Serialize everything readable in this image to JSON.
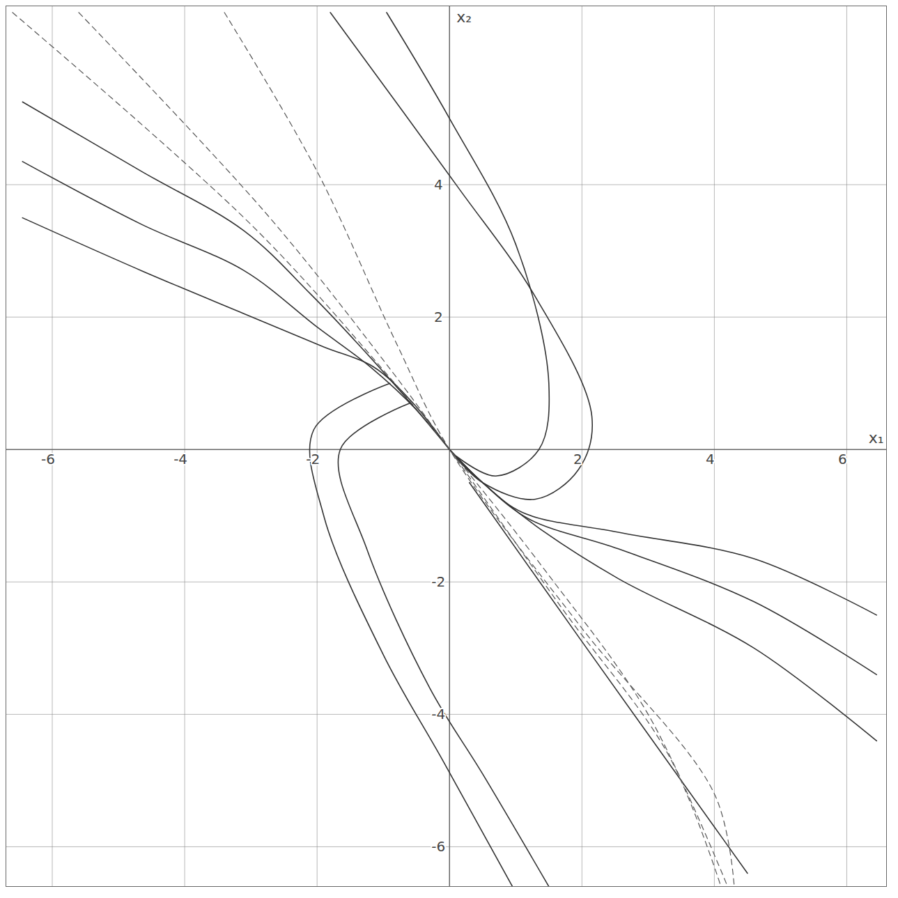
{
  "chart_data": {
    "type": "line",
    "x_label": "x₁",
    "y_label": "x₂",
    "xlim": [
      -6.7,
      6.6
    ],
    "ylim": [
      -6.6,
      6.7
    ],
    "xticks": [
      -6,
      -4,
      -2,
      2,
      4,
      6
    ],
    "yticks": [
      -6,
      -4,
      -2,
      2,
      4
    ],
    "grid": true,
    "series": [
      {
        "color": "#333333",
        "line_style": "solid",
        "x": [
          -6.45,
          -4.65,
          -3.1,
          -1.9,
          -1.15,
          -0.55,
          0
        ],
        "values": [
          3.5,
          2.7,
          2.05,
          1.55,
          1.25,
          0.7,
          0
        ]
      },
      {
        "color": "#333333",
        "line_style": "solid",
        "x": [
          -6.45,
          -4.65,
          -3.1,
          -2.0,
          -1.2,
          -0.5,
          0
        ],
        "values": [
          4.35,
          3.4,
          2.7,
          1.85,
          1.25,
          0.6,
          0
        ]
      },
      {
        "color": "#333333",
        "line_style": "solid",
        "x": [
          -6.45,
          -4.65,
          -3.1,
          -2.1,
          -1.25,
          -0.5,
          0
        ],
        "values": [
          5.25,
          4.2,
          3.3,
          2.35,
          1.45,
          0.6,
          0
        ]
      },
      {
        "color": "#333333",
        "line_style": "solid",
        "x": [
          6.45,
          4.6,
          2.55,
          1.1,
          0.5,
          0
        ],
        "values": [
          -2.5,
          -1.65,
          -1.25,
          -0.95,
          -0.5,
          0
        ]
      },
      {
        "color": "#333333",
        "line_style": "solid",
        "x": [
          6.45,
          4.6,
          2.55,
          1.2,
          0.5,
          0
        ],
        "values": [
          -3.4,
          -2.3,
          -1.5,
          -1.05,
          -0.5,
          0
        ]
      },
      {
        "color": "#333333",
        "line_style": "solid",
        "x": [
          6.45,
          4.6,
          2.55,
          1.3,
          0.5,
          0
        ],
        "values": [
          -4.4,
          -3.0,
          -1.95,
          -1.15,
          -0.5,
          0
        ]
      },
      {
        "color": "#333333",
        "line_style": "solid",
        "x": [
          -1.8,
          0.1,
          1.3,
          2.15,
          1.95,
          1.3,
          0.5,
          0
        ],
        "values": [
          6.6,
          4.0,
          2.3,
          0.5,
          -0.3,
          -0.75,
          -0.5,
          0
        ]
      },
      {
        "color": "#333333",
        "line_style": "solid",
        "x": [
          -0.95,
          0,
          1.0,
          1.5,
          1.35,
          0.7,
          0.1
        ],
        "values": [
          6.6,
          5.0,
          3.1,
          1.0,
          0,
          -0.4,
          -0.1
        ]
      },
      {
        "color": "#333333",
        "line_style": "solid",
        "x": [
          -0.9,
          -2.05,
          -1.9,
          -1.0,
          -0.1,
          0.95
        ],
        "values": [
          1.0,
          0.3,
          -1.0,
          -3.1,
          -4.7,
          -6.6
        ]
      },
      {
        "color": "#333333",
        "line_style": "solid",
        "x": [
          -0.6,
          -1.65,
          -1.25,
          -0.3,
          0.5,
          1.5
        ],
        "values": [
          0.7,
          0,
          -1.5,
          -3.6,
          -4.9,
          -6.6
        ]
      },
      {
        "color": "#333333",
        "line_style": "solid",
        "x": [
          0.3,
          2.0,
          4.0,
          4.5
        ],
        "values": [
          -0.5,
          -2.9,
          -5.7,
          -6.4
        ]
      },
      {
        "color": "#555555",
        "line_style": "dashed",
        "x": [
          -6.6,
          -3.0,
          -1.0,
          0,
          1.5,
          3.0,
          4.2
        ],
        "values": [
          6.6,
          3.4,
          1.2,
          0,
          -1.9,
          -4.0,
          -6.6
        ]
      },
      {
        "color": "#555555",
        "line_style": "dashed",
        "x": [
          -5.6,
          -2.8,
          -1.0,
          0,
          1.7,
          3.3,
          4.1
        ],
        "values": [
          6.6,
          3.6,
          1.35,
          0,
          -2.4,
          -4.6,
          -6.6
        ]
      },
      {
        "color": "#555555",
        "line_style": "dashed",
        "x": [
          -3.4,
          -2.0,
          -0.8,
          0,
          2.0,
          4.0,
          4.3
        ],
        "values": [
          6.6,
          4.2,
          1.6,
          0,
          -2.7,
          -5.2,
          -6.6
        ]
      }
    ]
  }
}
